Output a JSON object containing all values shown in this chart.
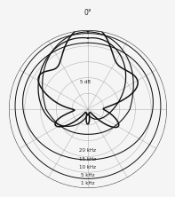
{
  "title": "0°",
  "background_color": "#f5f5f5",
  "grid_color": "#999999",
  "curve_color": "#111111",
  "n_radial_circles": 5,
  "n_angular_lines": 12,
  "freq_labels": [
    "20 kHz",
    "15 kHz",
    "10 kHz",
    "5 kHz",
    "1 kHz"
  ],
  "freq_label_radii": [
    0.51,
    0.62,
    0.72,
    0.83,
    0.93
  ],
  "r_label_5db": "5 dB"
}
